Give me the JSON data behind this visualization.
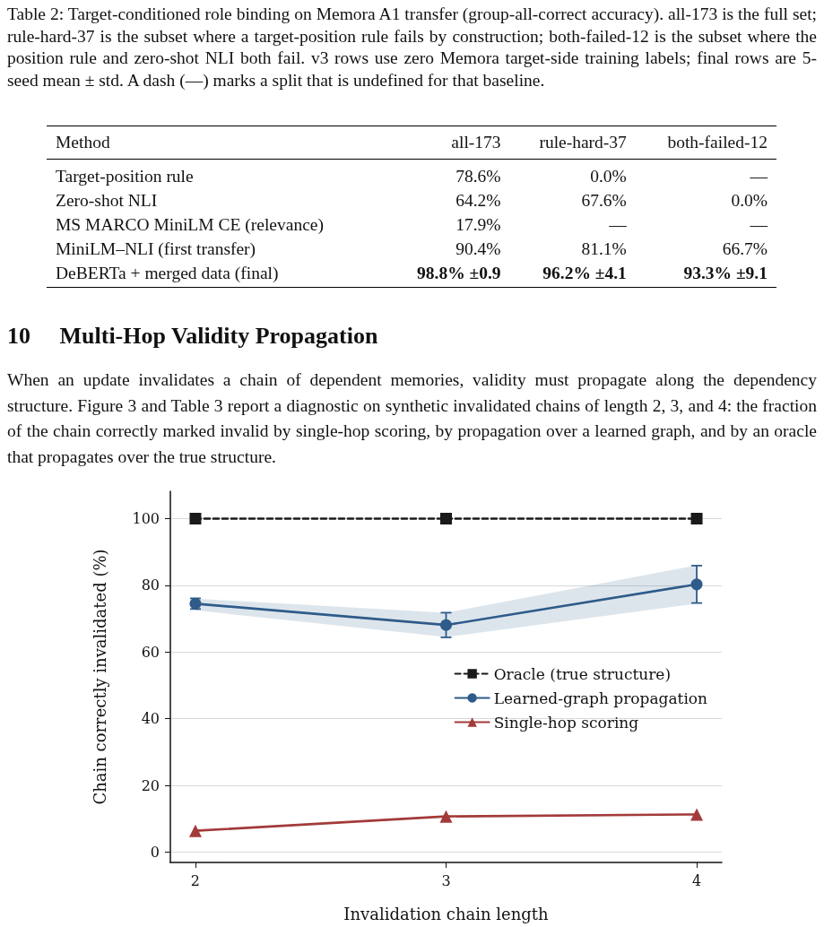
{
  "chart_data": {
    "type": "line",
    "annotations": [
      "Table 2: Target-conditioned role binding on Memora A1 transfer (group-all-correct accuracy). all-173 is the full set; rule-hard-37 is the subset where a target-position rule fails by construction; both-failed-12 is the subset where the position rule and zero-shot NLI both fail. v3 rows use zero Memora target-side training labels; final rows are 5-seed mean ± std. A dash (—) marks a split that is undefined for that baseline.",
      "Method",
      "all-173",
      "rule-hard-37",
      "both-failed-12",
      "Target-position rule",
      "78.6%",
      "0.0%",
      "—",
      "Zero-shot NLI",
      "64.2%",
      "67.6%",
      "0.0%",
      "MS MARCO MiniLM CE (relevance)",
      "17.9%",
      "—",
      "—",
      "MiniLM–NLI (first transfer)",
      "90.4%",
      "81.1%",
      "66.7%",
      "DeBERTa + merged data (final)",
      "98.8% ±0.9",
      "96.2% ±4.1",
      "93.3% ±9.1",
      "10 Multi-Hop Validity Propagation",
      "When an update invalidates a chain of dependent memories, validity must propagate along the dependency structure. Figure 3 and Table 3 report a diagnostic on synthetic invalidated chains of length 2, 3, and 4: the fraction of the chain correctly marked invalid by single-hop scoring, by propagation over a learned graph, and by an oracle that propagates over the true structure."
    ],
    "xlabel": "Invalidation chain length",
    "ylabel": "Chain correctly invalidated (%)",
    "x": [
      2,
      3,
      4
    ],
    "series": [
      {
        "name": "Oracle (true structure)",
        "color": "#1a1a1a",
        "marker": "square",
        "line_style": "dashed",
        "values": [
          100,
          100,
          100
        ]
      },
      {
        "name": "Learned-graph propagation",
        "color": "#2e5b8a",
        "marker": "circle",
        "line_style": "solid",
        "values": [
          74.5,
          68.1,
          80.3
        ],
        "errors": [
          1.6,
          3.7,
          5.6
        ],
        "lower": [
          72.5,
          64.5,
          74.5
        ],
        "upper": [
          76.0,
          71.8,
          86.0
        ]
      },
      {
        "name": "Single-hop scoring",
        "color": "#a33a3a",
        "marker": "triangle",
        "line_style": "solid",
        "values": [
          6.4,
          10.7,
          11.3
        ]
      }
    ],
    "xlim": [
      1.9,
      4.1
    ],
    "xticks": [
      2,
      3,
      4
    ],
    "ylim": [
      -3.1,
      108.2
    ],
    "yticks": [
      0,
      20,
      40,
      60,
      80,
      100
    ],
    "grid": "y",
    "legend": "center right"
  }
}
